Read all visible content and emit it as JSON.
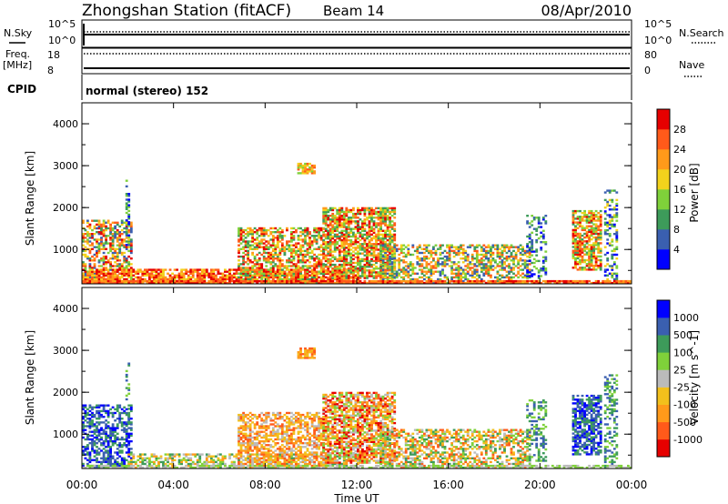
{
  "header": {
    "station": "Zhongshan Station (fitACF)",
    "beam": "Beam 14",
    "date": "08/Apr/2010"
  },
  "noise_panel": {
    "left_label": "N.Sky",
    "right_label": "N.Search",
    "left_ticks": [
      "10^5",
      "10^0"
    ],
    "right_ticks": [
      "10^5",
      "10^0"
    ]
  },
  "freq_panel": {
    "left_label_1": "Freq.",
    "left_label_2": "[MHz]",
    "right_label": "Nave",
    "left_ticks": [
      "18",
      "8"
    ],
    "right_ticks": [
      "80",
      "0"
    ]
  },
  "cpid_panel": {
    "label": "CPID",
    "text": "normal (stereo) 152"
  },
  "colors": {
    "power": [
      "#0000ff",
      "#3a5fb0",
      "#3d9b5a",
      "#7fd13a",
      "#f2d21c",
      "#ff9a1a",
      "#ff5a1a",
      "#e60000"
    ],
    "velocity": [
      "#e60000",
      "#ff5a1a",
      "#ff9a1a",
      "#f2c01c",
      "#bbbbbb",
      "#7fd13a",
      "#3d9b5a",
      "#3a5fb0",
      "#0000ff"
    ]
  },
  "chart_data": [
    {
      "type": "heatmap",
      "name": "power",
      "ylabel": "Slant Range [km]",
      "xlabel": "",
      "ylim": [
        180,
        4500
      ],
      "yticks": [
        "1000",
        "2000",
        "3000",
        "4000"
      ],
      "xticks": [
        "00:00",
        "04:00",
        "08:00",
        "12:00",
        "16:00",
        "20:00",
        "00:00"
      ],
      "colorbar_label": "Power [dB]",
      "colorbar_ticks": [
        "4",
        "8",
        "12",
        "16",
        "20",
        "24",
        "28"
      ],
      "regions": [
        {
          "t0": 0.0,
          "t1": 2.2,
          "r0": 180,
          "r1": 1700,
          "dens": 0.55,
          "lev": [
            1,
            7
          ]
        },
        {
          "t0": 1.9,
          "t1": 2.1,
          "r0": 1000,
          "r1": 2700,
          "dens": 0.4,
          "lev": [
            0,
            3
          ]
        },
        {
          "t0": 0.0,
          "t1": 12.0,
          "r0": 180,
          "r1": 500,
          "dens": 0.75,
          "lev": [
            4,
            7
          ]
        },
        {
          "t0": 6.8,
          "t1": 10.5,
          "r0": 180,
          "r1": 1500,
          "dens": 0.6,
          "lev": [
            2,
            7
          ]
        },
        {
          "t0": 9.4,
          "t1": 10.1,
          "r0": 2800,
          "r1": 3050,
          "dens": 0.8,
          "lev": [
            3,
            6
          ]
        },
        {
          "t0": 10.5,
          "t1": 13.6,
          "r0": 300,
          "r1": 2000,
          "dens": 0.7,
          "lev": [
            2,
            7
          ]
        },
        {
          "t0": 13.0,
          "t1": 19.6,
          "r0": 180,
          "r1": 1100,
          "dens": 0.55,
          "lev": [
            1,
            6
          ]
        },
        {
          "t0": 19.4,
          "t1": 20.3,
          "r0": 300,
          "r1": 1800,
          "dens": 0.35,
          "lev": [
            0,
            3
          ]
        },
        {
          "t0": 21.4,
          "t1": 22.7,
          "r0": 500,
          "r1": 1900,
          "dens": 0.7,
          "lev": [
            2,
            7
          ]
        },
        {
          "t0": 22.8,
          "t1": 23.4,
          "r0": 180,
          "r1": 2400,
          "dens": 0.4,
          "lev": [
            0,
            4
          ]
        },
        {
          "t0": 0.0,
          "t1": 24.0,
          "r0": 180,
          "r1": 260,
          "dens": 0.85,
          "lev": [
            5,
            7
          ]
        }
      ]
    },
    {
      "type": "heatmap",
      "name": "velocity",
      "ylabel": "Slant Range [km]",
      "xlabel": "Time UT",
      "ylim": [
        180,
        4500
      ],
      "yticks": [
        "1000",
        "2000",
        "3000",
        "4000"
      ],
      "xticks": [
        "00:00",
        "04:00",
        "08:00",
        "12:00",
        "16:00",
        "20:00",
        "00:00"
      ],
      "colorbar_label": "Velocity [m s^-1]",
      "colorbar_ticks": [
        "1000",
        "500",
        "100",
        "25",
        "-25",
        "-100",
        "-500",
        "-1000"
      ],
      "regions": [
        {
          "t0": 0.0,
          "t1": 2.2,
          "r0": 180,
          "r1": 1700,
          "dens": 0.55,
          "lev": [
            6,
            8
          ]
        },
        {
          "t0": 1.9,
          "t1": 2.1,
          "r0": 1000,
          "r1": 2700,
          "dens": 0.4,
          "lev": [
            5,
            7
          ]
        },
        {
          "t0": 2.0,
          "t1": 12.0,
          "r0": 180,
          "r1": 500,
          "dens": 0.55,
          "lev": [
            2,
            6
          ]
        },
        {
          "t0": 6.8,
          "t1": 10.5,
          "r0": 180,
          "r1": 1500,
          "dens": 0.6,
          "lev": [
            1,
            4
          ]
        },
        {
          "t0": 9.4,
          "t1": 10.1,
          "r0": 2800,
          "r1": 3050,
          "dens": 0.8,
          "lev": [
            1,
            3
          ]
        },
        {
          "t0": 10.5,
          "t1": 13.6,
          "r0": 300,
          "r1": 2000,
          "dens": 0.7,
          "lev": [
            0,
            5
          ]
        },
        {
          "t0": 13.0,
          "t1": 19.6,
          "r0": 180,
          "r1": 1100,
          "dens": 0.55,
          "lev": [
            1,
            6
          ]
        },
        {
          "t0": 19.4,
          "t1": 20.3,
          "r0": 300,
          "r1": 1800,
          "dens": 0.35,
          "lev": [
            5,
            7
          ]
        },
        {
          "t0": 21.4,
          "t1": 22.7,
          "r0": 500,
          "r1": 1900,
          "dens": 0.7,
          "lev": [
            6,
            8
          ]
        },
        {
          "t0": 22.8,
          "t1": 23.4,
          "r0": 180,
          "r1": 2400,
          "dens": 0.4,
          "lev": [
            5,
            7
          ]
        },
        {
          "t0": 0.0,
          "t1": 24.0,
          "r0": 180,
          "r1": 260,
          "dens": 0.6,
          "lev": [
            4,
            5
          ]
        }
      ]
    }
  ]
}
